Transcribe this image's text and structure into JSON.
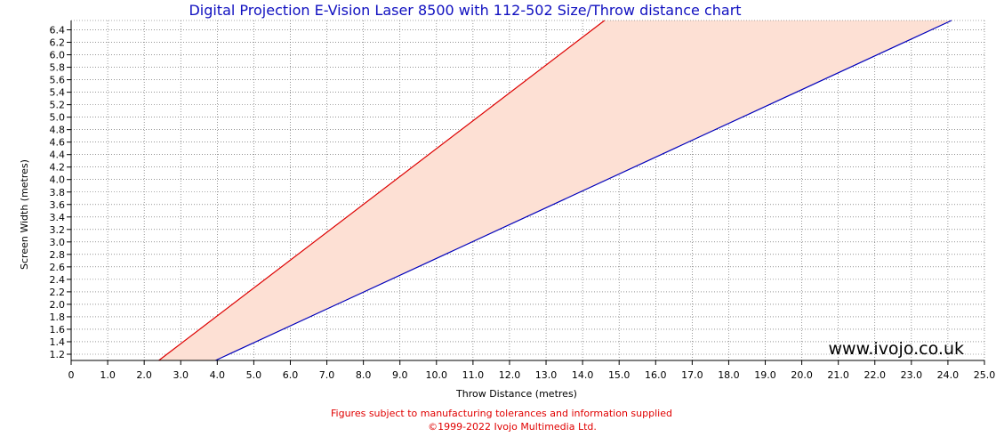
{
  "chart_data": {
    "type": "line",
    "title": "Digital Projection E-Vision Laser 8500 with 112-502 Size/Throw distance chart",
    "xlabel": "Throw Distance (metres)",
    "ylabel": "Screen Width (metres)",
    "xlim": [
      0,
      25
    ],
    "ylim": [
      1.1,
      6.55
    ],
    "x_ticks": [
      "0",
      "1.0",
      "2.0",
      "3.0",
      "4.0",
      "5.0",
      "6.0",
      "7.0",
      "8.0",
      "9.0",
      "10.0",
      "11.0",
      "12.0",
      "13.0",
      "14.0",
      "15.0",
      "16.0",
      "17.0",
      "18.0",
      "19.0",
      "20.0",
      "21.0",
      "22.0",
      "23.0",
      "24.0",
      "25.0"
    ],
    "y_ticks": [
      "1.2",
      "1.4",
      "1.6",
      "1.8",
      "2.0",
      "2.2",
      "2.4",
      "2.6",
      "2.8",
      "3.0",
      "3.2",
      "3.4",
      "3.6",
      "3.8",
      "4.0",
      "4.2",
      "4.4",
      "4.6",
      "4.8",
      "5.0",
      "5.2",
      "5.4",
      "5.6",
      "5.8",
      "6.0",
      "6.2",
      "6.4"
    ],
    "grid": true,
    "fill_color": "#fde0d4",
    "series": [
      {
        "key": "min_throw",
        "color": "#dd0000",
        "x": [
          2.4,
          14.6
        ],
        "y": [
          1.1,
          6.55
        ]
      },
      {
        "key": "max_throw",
        "color": "#0000bb",
        "x": [
          3.95,
          24.1
        ],
        "y": [
          1.1,
          6.55
        ]
      }
    ]
  },
  "watermark": "www.ivojo.co.uk",
  "footer": {
    "line1": "Figures subject to manufacturing tolerances and information supplied",
    "line2": "©1999-2022 Ivojo Multimedia Ltd."
  }
}
